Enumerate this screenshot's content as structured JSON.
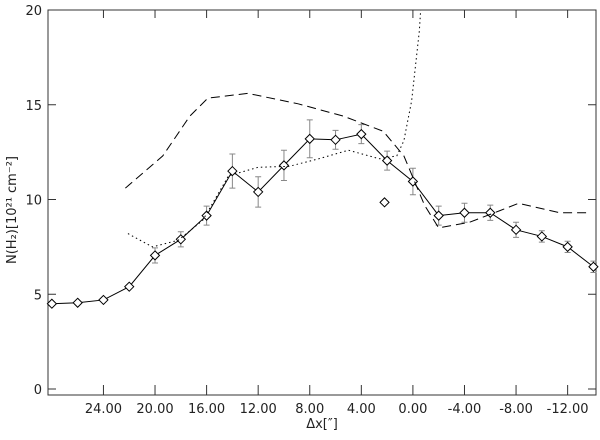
{
  "chart_data": {
    "type": "line",
    "x_label": "Δx[″]",
    "y_label": "N(H₂)[10²¹ cm⁻²]",
    "xlim": [
      28.3,
      -14.2
    ],
    "ylim": [
      0,
      20
    ],
    "xticks": [
      {
        "value": 24,
        "label": "24.00"
      },
      {
        "value": 20,
        "label": "20.00"
      },
      {
        "value": 16,
        "label": "16.00"
      },
      {
        "value": 12,
        "label": "12.00"
      },
      {
        "value": 8,
        "label": "8.00"
      },
      {
        "value": 4,
        "label": "4.00"
      },
      {
        "value": 0,
        "label": "0.00"
      },
      {
        "value": -4,
        "label": "-4.00"
      },
      {
        "value": -8,
        "label": "-8.00"
      },
      {
        "value": -12,
        "label": "-12.00"
      }
    ],
    "yticks": [
      0,
      5,
      10,
      15,
      20
    ],
    "color": "#000000",
    "series": [
      {
        "style": "solid",
        "marker": "diamond",
        "x": [
          28,
          26,
          24,
          22,
          20,
          18,
          16,
          14,
          12,
          10,
          8,
          6,
          4,
          2,
          0,
          -2,
          -4,
          -6,
          -8,
          -10,
          -12,
          -14
        ],
        "values": [
          4.5,
          4.55,
          4.7,
          5.4,
          7.05,
          7.9,
          9.15,
          11.5,
          10.4,
          11.8,
          13.2,
          13.15,
          13.45,
          12.05,
          10.95,
          9.15,
          9.3,
          9.3,
          8.4,
          8.05,
          7.5,
          6.45
        ],
        "errors": [
          null,
          null,
          null,
          null,
          0.4,
          0.4,
          0.5,
          0.9,
          0.8,
          0.8,
          1.0,
          0.5,
          0.5,
          0.5,
          0.7,
          0.5,
          0.5,
          0.4,
          0.4,
          0.3,
          0.3,
          0.3
        ]
      },
      {
        "style": "dashed",
        "x": [
          22.3,
          19.4,
          17.3,
          15.9,
          12.8,
          8.9,
          5.4,
          2.3,
          0.7,
          -0.9,
          -2,
          -4.4,
          -6.7,
          -8.2,
          -11.4,
          -13.7
        ],
        "values": [
          10.6,
          12.3,
          14.4,
          15.35,
          15.6,
          15.05,
          14.4,
          13.6,
          12.3,
          9.7,
          8.5,
          8.8,
          9.4,
          9.8,
          9.3,
          9.3
        ]
      },
      {
        "style": "dotted",
        "x": [
          22.1,
          20.2,
          18.2,
          16.3,
          14.3,
          12,
          9.6,
          7.3,
          5,
          2.6,
          1.25,
          0.7,
          0.1,
          -0.5,
          -0.6
        ],
        "values": [
          8.2,
          7.5,
          7.85,
          8.9,
          11.25,
          11.7,
          11.75,
          12.15,
          12.6,
          12.15,
          12.3,
          13.1,
          15.2,
          18.9,
          20
        ]
      },
      {
        "style": "none",
        "marker": "diamond",
        "x": [
          2.2
        ],
        "values": [
          9.85
        ]
      }
    ]
  }
}
